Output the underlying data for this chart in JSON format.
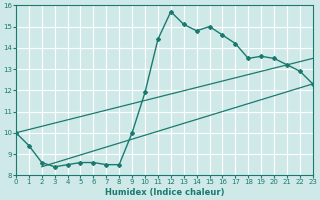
{
  "xlabel": "Humidex (Indice chaleur)",
  "xlim": [
    0,
    23
  ],
  "ylim": [
    8,
    16
  ],
  "xticks": [
    0,
    1,
    2,
    3,
    4,
    5,
    6,
    7,
    8,
    9,
    10,
    11,
    12,
    13,
    14,
    15,
    16,
    17,
    18,
    19,
    20,
    21,
    22,
    23
  ],
  "yticks": [
    8,
    9,
    10,
    11,
    12,
    13,
    14,
    15,
    16
  ],
  "bg_color": "#cfe9e9",
  "line_color": "#1a7a6e",
  "grid_color": "#b8d8d8",
  "main_x": [
    0,
    1,
    2,
    3,
    4,
    5,
    6,
    7,
    8,
    9,
    10,
    11,
    12,
    13,
    14,
    15,
    16,
    17,
    18,
    19,
    20,
    21,
    22,
    23
  ],
  "main_y": [
    10.0,
    9.4,
    8.6,
    8.4,
    8.5,
    8.6,
    8.6,
    8.5,
    8.5,
    10.0,
    11.9,
    14.4,
    15.7,
    15.1,
    14.8,
    15.0,
    14.6,
    14.2,
    13.5,
    13.6,
    13.5,
    13.2,
    12.9,
    12.3
  ],
  "line2_x": [
    0,
    23
  ],
  "line2_y": [
    10.0,
    13.5
  ],
  "line3_x": [
    2,
    23
  ],
  "line3_y": [
    8.4,
    12.3
  ]
}
